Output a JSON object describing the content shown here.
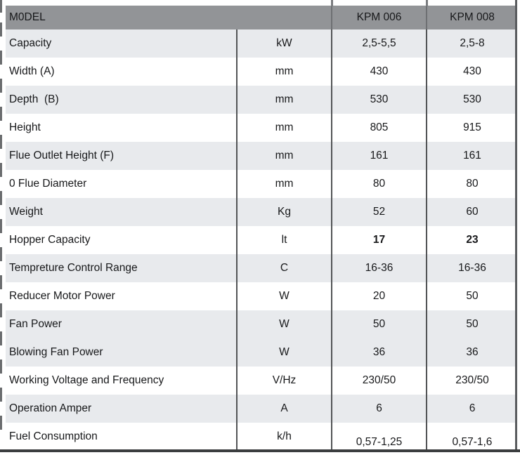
{
  "table": {
    "model_label": "M0DEL",
    "columns": [
      "KPM 006",
      "KPM 008"
    ],
    "rows": [
      {
        "label": "Capacity",
        "unit": "kW",
        "kpm006": "2,5-5,5",
        "kpm008": "2,5-8",
        "shade": true,
        "bold_values": false,
        "values_bottom": false
      },
      {
        "label": "Width (A)",
        "unit": "mm",
        "kpm006": "430",
        "kpm008": "430",
        "shade": false,
        "bold_values": false,
        "values_bottom": false
      },
      {
        "label": "Depth  (B)",
        "unit": "mm",
        "kpm006": "530",
        "kpm008": "530",
        "shade": true,
        "bold_values": false,
        "values_bottom": false
      },
      {
        "label": "Height",
        "unit": "mm",
        "kpm006": "805",
        "kpm008": "915",
        "shade": false,
        "bold_values": false,
        "values_bottom": false
      },
      {
        "label": "Flue Outlet Height (F)",
        "unit": "mm",
        "kpm006": "161",
        "kpm008": "161",
        "shade": true,
        "bold_values": false,
        "values_bottom": false
      },
      {
        "label": "0 Flue Diameter",
        "unit": "mm",
        "kpm006": "80",
        "kpm008": "80",
        "shade": false,
        "bold_values": false,
        "values_bottom": false
      },
      {
        "label": "Weight",
        "unit": "Kg",
        "kpm006": "52",
        "kpm008": "60",
        "shade": true,
        "bold_values": false,
        "values_bottom": false
      },
      {
        "label": "Hopper Capacity",
        "unit": "lt",
        "kpm006": "17",
        "kpm008": "23",
        "shade": false,
        "bold_values": true,
        "values_bottom": false
      },
      {
        "label": "Tempreture Control Range",
        "unit": "C",
        "kpm006": "16-36",
        "kpm008": "16-36",
        "shade": true,
        "bold_values": false,
        "values_bottom": false
      },
      {
        "label": "Reducer Motor Power",
        "unit": "W",
        "kpm006": "20",
        "kpm008": "50",
        "shade": false,
        "bold_values": false,
        "values_bottom": false
      },
      {
        "label": "Fan Power",
        "unit": "W",
        "kpm006": "50",
        "kpm008": "50",
        "shade": true,
        "bold_values": false,
        "values_bottom": false
      },
      {
        "label": "Blowing Fan Power",
        "unit": "W",
        "kpm006": "36",
        "kpm008": "36",
        "shade": true,
        "bold_values": false,
        "values_bottom": false
      },
      {
        "label": "Working Voltage and Frequency",
        "unit": "V/Hz",
        "kpm006": "230/50",
        "kpm008": "230/50",
        "shade": false,
        "bold_values": false,
        "values_bottom": false
      },
      {
        "label": "Operation Amper",
        "unit": "A",
        "kpm006": "6",
        "kpm008": "6",
        "shade": true,
        "bold_values": false,
        "values_bottom": false
      },
      {
        "label": "Fuel Consumption",
        "unit": "k/h",
        "kpm006": "0,57-1,25",
        "kpm008": "0,57-1,6",
        "shade": false,
        "bold_values": false,
        "values_bottom": true
      }
    ]
  },
  "colors": {
    "header_bg": "#929497",
    "row_shade_bg": "#e8eaed",
    "row_plain_bg": "#ffffff",
    "grid_line": "#525456",
    "outer_right_border": "#5a5c5f",
    "outer_bottom_border": "#3b3d3f",
    "text": "#17181a"
  }
}
